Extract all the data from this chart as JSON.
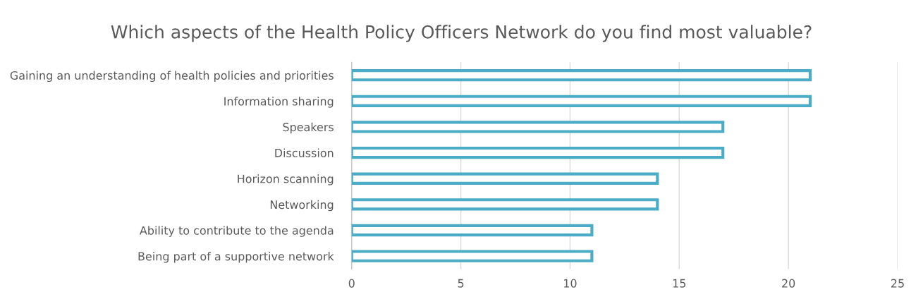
{
  "chart_data": {
    "type": "bar",
    "orientation": "horizontal",
    "title": "Which aspects of the Health Policy Officers Network do you find most valuable?",
    "categories": [
      "Gaining an understanding of health policies and priorities",
      "Information sharing",
      "Speakers",
      "Discussion",
      "Horizon scanning",
      "Networking",
      "Ability to contribute to the agenda",
      "Being part of a supportive network"
    ],
    "values": [
      21,
      21,
      17,
      17,
      14,
      14,
      11,
      11
    ],
    "color": "#4bacc6",
    "xlim": [
      0,
      25
    ],
    "xticks": [
      0,
      5,
      10,
      15,
      20,
      25
    ],
    "grid": "x"
  }
}
